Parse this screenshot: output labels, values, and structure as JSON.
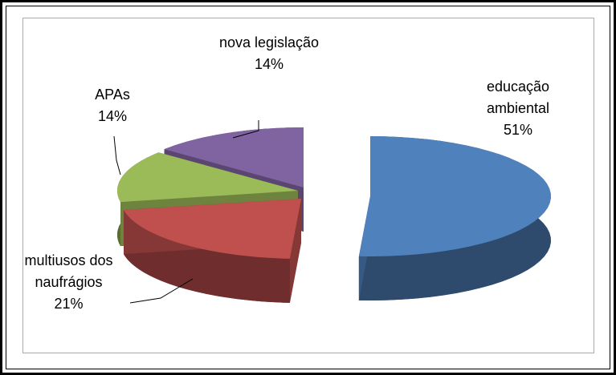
{
  "chart_data": {
    "type": "pie",
    "categories": [
      "educação ambiental",
      "multiusos dos naufrágios",
      "APAs",
      "nova legislação"
    ],
    "values": [
      51,
      21,
      14,
      14
    ],
    "value_labels": [
      "51%",
      "21%",
      "14%",
      "14%"
    ],
    "colors": [
      "#4f81bd",
      "#c0504d",
      "#9bbb59",
      "#8064a2"
    ]
  }
}
